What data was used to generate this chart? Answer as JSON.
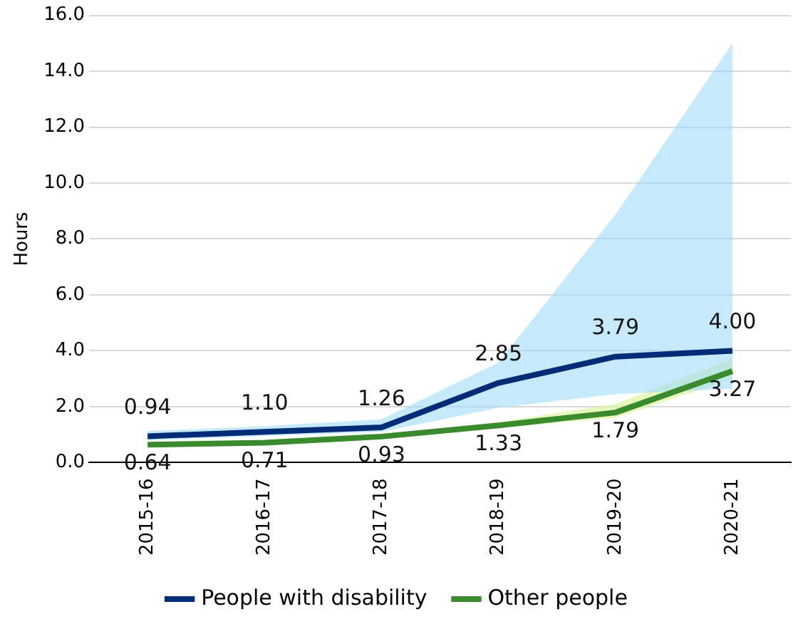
{
  "chart_data": {
    "type": "line",
    "ylabel": "Hours",
    "categories": [
      "2015-16",
      "2016-17",
      "2017-18",
      "2018-19",
      "2019-20",
      "2020-21"
    ],
    "series": [
      {
        "name": "People with disability",
        "color": "#002c77",
        "values": [
          0.94,
          1.1,
          1.26,
          2.85,
          3.79,
          4.0
        ],
        "value_labels": [
          "0.94",
          "1.10",
          "1.26",
          "2.85",
          "3.79",
          "4.00"
        ],
        "lower": [
          0.8,
          0.95,
          1.1,
          1.96,
          2.45,
          2.64
        ],
        "upper": [
          1.13,
          1.3,
          1.55,
          3.58,
          8.87,
          15.0
        ]
      },
      {
        "name": "Other people",
        "color": "#3a8a2e",
        "values": [
          0.64,
          0.71,
          0.93,
          1.33,
          1.79,
          3.27
        ],
        "value_labels": [
          "0.64",
          "0.71",
          "0.93",
          "1.33",
          "1.79",
          "3.27"
        ],
        "lower": [
          0.6,
          0.67,
          0.88,
          1.25,
          1.6,
          3.0
        ],
        "upper": [
          0.68,
          0.76,
          0.98,
          1.45,
          2.1,
          3.72
        ]
      }
    ],
    "ylim": [
      0,
      16
    ],
    "yticks": [
      {
        "value": 0,
        "label": "0.0"
      },
      {
        "value": 2,
        "label": "2.0"
      },
      {
        "value": 4,
        "label": "4.0"
      },
      {
        "value": 6,
        "label": "6.0"
      },
      {
        "value": 8,
        "label": "8.0"
      },
      {
        "value": 10,
        "label": "10.0"
      },
      {
        "value": 12,
        "label": "12.0"
      },
      {
        "value": 14,
        "label": "14.0"
      },
      {
        "value": 16,
        "label": "16.0"
      }
    ],
    "grid": "y",
    "legend": "bottom"
  }
}
